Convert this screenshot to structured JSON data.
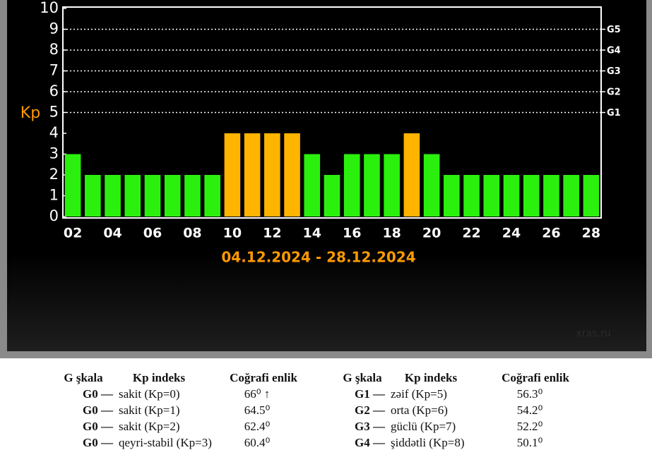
{
  "chart_data": {
    "type": "bar",
    "ylabel": "Kp",
    "subtitle": "04.12.2024 - 28.12.2024",
    "watermark": "xras.ru",
    "categories": [
      "02",
      null,
      "04",
      null,
      "06",
      null,
      "08",
      null,
      "10",
      null,
      "12",
      null,
      "14",
      null,
      "16",
      null,
      "18",
      null,
      "20",
      null,
      "22",
      null,
      "24",
      null,
      "26",
      null,
      "28"
    ],
    "values": [
      3,
      2,
      2,
      2,
      2,
      2,
      2,
      2,
      4,
      4,
      4,
      4,
      3,
      2,
      3,
      3,
      3,
      4,
      3,
      2,
      2,
      2,
      2,
      2,
      2,
      2,
      2
    ],
    "colors": [
      "#2bf00e",
      "#2bf00e",
      "#2bf00e",
      "#2bf00e",
      "#2bf00e",
      "#2bf00e",
      "#2bf00e",
      "#2bf00e",
      "#ffb400",
      "#ffb400",
      "#ffb400",
      "#ffb400",
      "#2bf00e",
      "#2bf00e",
      "#2bf00e",
      "#2bf00e",
      "#2bf00e",
      "#ffb400",
      "#2bf00e",
      "#2bf00e",
      "#2bf00e",
      "#2bf00e",
      "#2bf00e",
      "#2bf00e",
      "#2bf00e",
      "#2bf00e",
      "#2bf00e"
    ],
    "ylim": [
      0,
      10
    ],
    "yticks": [
      0,
      1,
      2,
      3,
      4,
      5,
      6,
      7,
      8,
      9,
      10
    ],
    "y2lim": [
      0,
      10
    ],
    "y2ticks": [
      {
        "value": 5,
        "label": "G1"
      },
      {
        "value": 6,
        "label": "G2"
      },
      {
        "value": 7,
        "label": "G3"
      },
      {
        "value": 8,
        "label": "G4"
      },
      {
        "value": 9,
        "label": "G5"
      }
    ],
    "grid": true
  },
  "scale_table": {
    "left": {
      "headers": [
        "G şkala",
        "Kp indeks",
        "Coğrafi enlik"
      ],
      "rows": [
        [
          "G0 —",
          "sakit (Kp=0)",
          "66⁰ ↑"
        ],
        [
          "G0 —",
          "sakit (Kp=1)",
          "64.5⁰"
        ],
        [
          "G0 —",
          "sakit (Kp=2)",
          "62.4⁰"
        ],
        [
          "G0 —",
          "qeyri-stabil (Kp=3)",
          "60.4⁰"
        ]
      ]
    },
    "right": {
      "headers": [
        "G şkala",
        "Kp indeks",
        "Coğrafi enlik"
      ],
      "rows": [
        [
          "G1 —",
          "zəif (Kp=5)",
          "56.3⁰"
        ],
        [
          "G2 —",
          "orta (Kp=6)",
          "54.2⁰"
        ],
        [
          "G3 —",
          "güclü (Kp=7)",
          "52.2⁰"
        ],
        [
          "G4 —",
          "şiddətli (Kp=8)",
          "50.1⁰"
        ]
      ]
    }
  }
}
